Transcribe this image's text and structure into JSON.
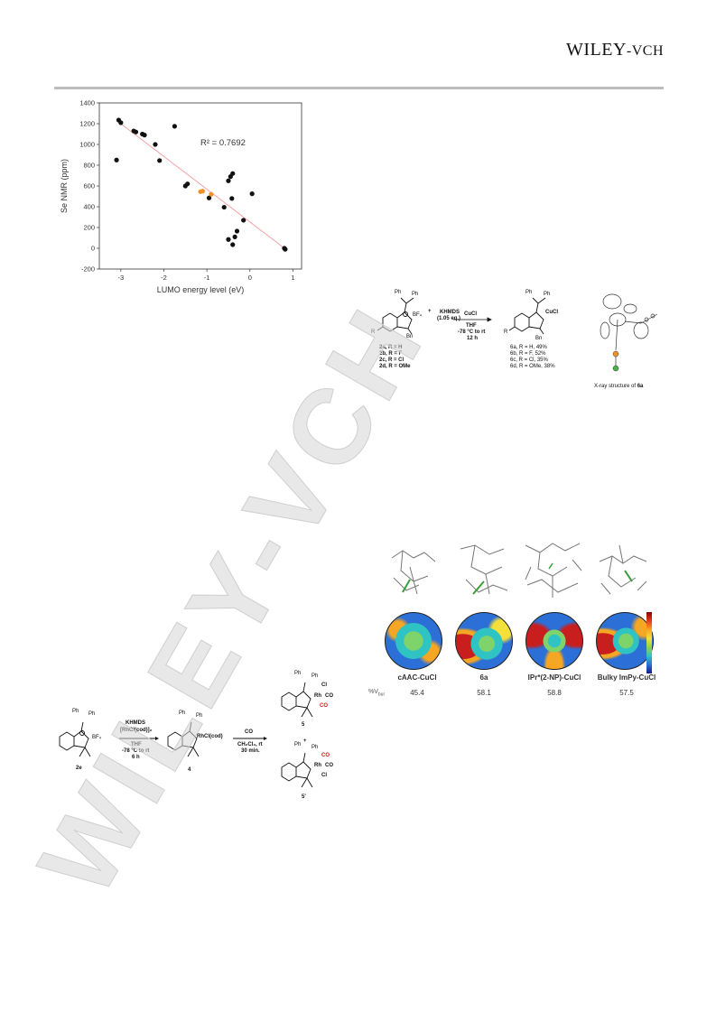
{
  "header": {
    "publisher_main": "WILEY",
    "publisher_suffix": "-VCH"
  },
  "watermark": {
    "text": "WILEY-VCH"
  },
  "chart_data": {
    "type": "scatter",
    "xlabel": "LUMO energy level (eV)",
    "ylabel": "Se NMR (ppm)",
    "xlim": [
      -3.5,
      1.2
    ],
    "ylim": [
      -200,
      1400
    ],
    "x_ticks": [
      "-3",
      "-2",
      "-1",
      "0",
      "1"
    ],
    "y_ticks": [
      "-200",
      "0",
      "200",
      "400",
      "600",
      "800",
      "1000",
      "1200",
      "1400"
    ],
    "annotation": "R² = 0.7692",
    "grid": false,
    "points": [
      {
        "x": -3.05,
        "y": 1235
      },
      {
        "x": -3.0,
        "y": 1210
      },
      {
        "x": -3.1,
        "y": 850
      },
      {
        "x": -2.7,
        "y": 1130
      },
      {
        "x": -2.65,
        "y": 1120
      },
      {
        "x": -2.5,
        "y": 1100
      },
      {
        "x": -2.45,
        "y": 1090
      },
      {
        "x": -2.2,
        "y": 1000
      },
      {
        "x": -2.1,
        "y": 845
      },
      {
        "x": -1.75,
        "y": 1175
      },
      {
        "x": -1.5,
        "y": 600
      },
      {
        "x": -1.45,
        "y": 620
      },
      {
        "x": -0.95,
        "y": 485
      },
      {
        "x": -0.6,
        "y": 395
      },
      {
        "x": -0.5,
        "y": 650
      },
      {
        "x": -0.45,
        "y": 690
      },
      {
        "x": -0.4,
        "y": 720
      },
      {
        "x": -0.42,
        "y": 480
      },
      {
        "x": -0.3,
        "y": 165
      },
      {
        "x": -0.35,
        "y": 110
      },
      {
        "x": -0.5,
        "y": 85
      },
      {
        "x": -0.4,
        "y": 35
      },
      {
        "x": -0.15,
        "y": 270
      },
      {
        "x": 0.05,
        "y": 525
      },
      {
        "x": 0.8,
        "y": 0
      },
      {
        "x": 0.82,
        "y": -10
      }
    ],
    "highlight_points": [
      {
        "x": -1.15,
        "y": 545
      },
      {
        "x": -1.1,
        "y": 550
      },
      {
        "x": -0.9,
        "y": 520
      }
    ],
    "trend": {
      "x1": -3.05,
      "y1": 1215,
      "x2": 0.85,
      "y2": -15
    },
    "colors": {
      "points": "#111111",
      "highlight": "#f0932b",
      "trend": "#f3a3a3"
    }
  },
  "scheme1": {
    "reagent_ph": "Ph",
    "reagent_bf4": "BF₄",
    "reagent_bn": "Bn",
    "reagent_r": "R",
    "plus": "+",
    "base": "KHMDS",
    "base_eq": "(1.05 eq.)",
    "metal": "CuCl",
    "solvent": "THF",
    "temp": "-78 °C to rt",
    "time": "12 h",
    "product_cucl": "CuCl",
    "reactants": [
      "2a, R = H",
      "2b, R = F",
      "2c, R = Cl",
      "2d, R = OMe"
    ],
    "products": [
      "6a, R = H, 49%",
      "6b, R = F, 52%",
      "6c, R = Cl, 35%",
      "6d, R = OMe, 38%"
    ],
    "xray_caption_prefix": "X-ray structure of ",
    "xray_caption_bold": "6a"
  },
  "scheme2": {
    "ph": "Ph",
    "bf4": "BF₄",
    "start_label": "2e",
    "reagent1": "KHMDS",
    "reagent2": "[RhCl(cod)]₂",
    "solvent": "THF",
    "temp": "-78 °C to rt",
    "time": "6 h",
    "intermediate_group": "RhCl(cod)",
    "intermediate_label": "4",
    "co": "CO",
    "solvent2": "CH₂Cl₂, rt",
    "time2": "30 min.",
    "product_a_label": "5",
    "plus": "+",
    "product_b_label": "5'",
    "rh": "Rh",
    "cl": "Cl",
    "co_group": "CO"
  },
  "panel": {
    "vbur_label": "%V",
    "vbur_sub": "bur",
    "items": [
      {
        "label": "cAAC-CuCl",
        "vbur": "45.4"
      },
      {
        "label": "6a",
        "vbur": "58.1"
      },
      {
        "label": "IPr*(2-NP)-CuCl",
        "vbur": "58.8"
      },
      {
        "label": "Bulky ImPy-CuCl",
        "vbur": "57.5"
      }
    ]
  }
}
